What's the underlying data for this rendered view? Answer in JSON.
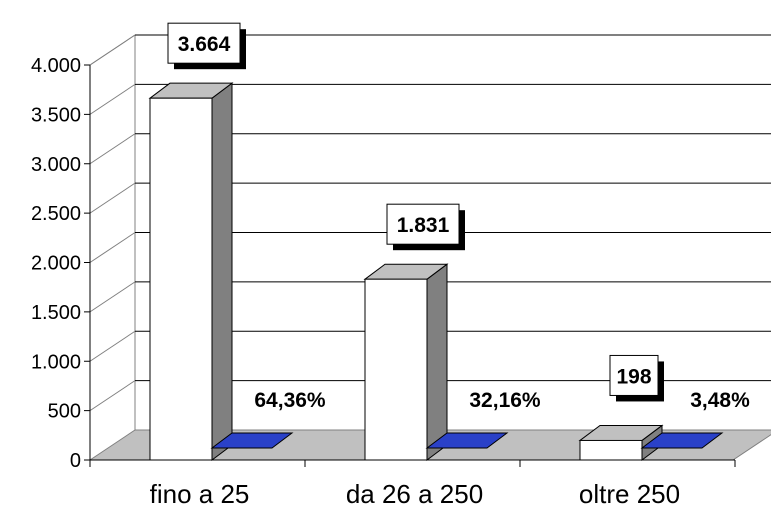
{
  "chart_data": {
    "type": "bar",
    "categories": [
      "fino a 25",
      "da 26 a 250",
      "oltre 250"
    ],
    "values": [
      3664,
      1831,
      198
    ],
    "value_labels": [
      "3.664",
      "1.831",
      "198"
    ],
    "percentages": [
      64.36,
      32.16,
      3.48
    ],
    "percentage_labels": [
      "64,36%",
      "32,16%",
      "3,48%"
    ],
    "ylim": [
      0,
      4000
    ],
    "yticks": [
      0,
      500,
      1000,
      1500,
      2000,
      2500,
      3000,
      3500,
      4000
    ],
    "ytick_labels": [
      "0",
      "500",
      "1.000",
      "1.500",
      "2.000",
      "2.500",
      "3.000",
      "3.500",
      "4.000"
    ],
    "grid": true,
    "legend": "none",
    "colors": {
      "bar_front": "#ffffff",
      "bar_side": "#808080",
      "bar_top": "#c0c0c0",
      "percent_bar": "#2a41c8",
      "floor": "#c0c0c0",
      "gridline": "#000000"
    }
  }
}
